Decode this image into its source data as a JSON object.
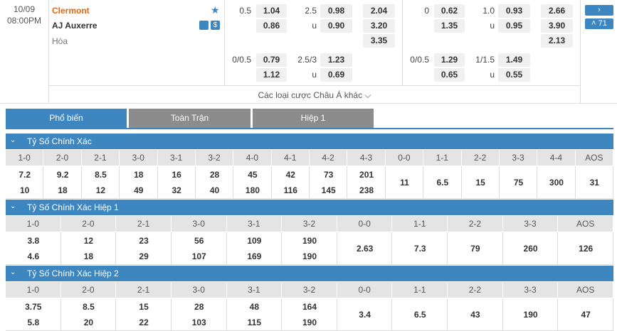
{
  "match": {
    "date": "10/09",
    "time": "08:00PM",
    "home": "Clermont",
    "away": "AJ Auxerre",
    "draw": "Hòa",
    "more": "Các loại cược Châu Á khác",
    "badge": "71"
  },
  "odds": [
    {
      "rows": [
        {
          "a": {
            "label": "0.5",
            "value": "1.04"
          },
          "b": {
            "label": "2.5",
            "value": "0.98"
          },
          "c": "2.04"
        },
        {
          "a": {
            "value": "0.86"
          },
          "b": {
            "label": "u",
            "value": "0.90"
          },
          "c": "3.20"
        },
        {
          "c": "3.35"
        },
        {
          "a": {
            "label": "0/0.5",
            "value": "0.79"
          },
          "b": {
            "label": "2.5/3",
            "value": "1.23"
          }
        },
        {
          "a": {
            "value": "1.12"
          },
          "b": {
            "label": "u",
            "value": "0.69"
          }
        }
      ]
    },
    {
      "rows": [
        {
          "a": {
            "label": "0",
            "value": "0.62"
          },
          "b": {
            "label": "1.0",
            "value": "0.93"
          },
          "c": "2.66"
        },
        {
          "a": {
            "value": "1.35"
          },
          "b": {
            "label": "u",
            "value": "0.95"
          },
          "c": "3.90"
        },
        {
          "c": "2.13"
        },
        {
          "a": {
            "label": "0/0.5",
            "value": "1.29"
          },
          "b": {
            "label": "1/1.5",
            "value": "1.49"
          }
        },
        {
          "a": {
            "value": "0.65"
          },
          "b": {
            "label": "u",
            "value": "0.55"
          }
        }
      ]
    }
  ],
  "tabs": [
    "Phổ biến",
    "Toàn Trận",
    "Hiệp 1"
  ],
  "sections": [
    {
      "title": "Tỷ Số Chính Xác",
      "cells": [
        {
          "label": "1-0",
          "values": [
            "7.2",
            "10"
          ]
        },
        {
          "label": "2-0",
          "values": [
            "9.2",
            "18"
          ]
        },
        {
          "label": "2-1",
          "values": [
            "8.5",
            "12"
          ]
        },
        {
          "label": "3-0",
          "values": [
            "18",
            "49"
          ]
        },
        {
          "label": "3-1",
          "values": [
            "16",
            "32"
          ]
        },
        {
          "label": "3-2",
          "values": [
            "28",
            "40"
          ]
        },
        {
          "label": "4-0",
          "values": [
            "45",
            "180"
          ]
        },
        {
          "label": "4-1",
          "values": [
            "42",
            "116"
          ]
        },
        {
          "label": "4-2",
          "values": [
            "73",
            "145"
          ]
        },
        {
          "label": "4-3",
          "values": [
            "201",
            "238"
          ]
        },
        {
          "label": "0-0",
          "values": [
            "11"
          ]
        },
        {
          "label": "1-1",
          "values": [
            "6.5"
          ]
        },
        {
          "label": "2-2",
          "values": [
            "15"
          ]
        },
        {
          "label": "3-3",
          "values": [
            "75"
          ]
        },
        {
          "label": "4-4",
          "values": [
            "300"
          ]
        },
        {
          "label": "AOS",
          "values": [
            "31"
          ]
        }
      ]
    },
    {
      "title": "Tỷ Số Chính Xác Hiệp 1",
      "cells": [
        {
          "label": "1-0",
          "values": [
            "3.8",
            "4.6"
          ]
        },
        {
          "label": "2-0",
          "values": [
            "12",
            "18"
          ]
        },
        {
          "label": "2-1",
          "values": [
            "23",
            "29"
          ]
        },
        {
          "label": "3-0",
          "values": [
            "56",
            "107"
          ]
        },
        {
          "label": "3-1",
          "values": [
            "109",
            "169"
          ]
        },
        {
          "label": "3-2",
          "values": [
            "190",
            "190"
          ]
        },
        {
          "label": "0-0",
          "values": [
            "2.63"
          ]
        },
        {
          "label": "1-1",
          "values": [
            "7.3"
          ]
        },
        {
          "label": "2-2",
          "values": [
            "79"
          ]
        },
        {
          "label": "3-3",
          "values": [
            "260"
          ]
        },
        {
          "label": "AOS",
          "values": [
            "126"
          ]
        }
      ]
    },
    {
      "title": "Tỷ Số Chính Xác Hiệp 2",
      "cells": [
        {
          "label": "1-0",
          "values": [
            "3.75",
            "5.8"
          ]
        },
        {
          "label": "2-0",
          "values": [
            "8.5",
            "20"
          ]
        },
        {
          "label": "2-1",
          "values": [
            "15",
            "22"
          ]
        },
        {
          "label": "3-0",
          "values": [
            "28",
            "103"
          ]
        },
        {
          "label": "3-1",
          "values": [
            "48",
            "115"
          ]
        },
        {
          "label": "3-2",
          "values": [
            "164",
            "190"
          ]
        },
        {
          "label": "0-0",
          "values": [
            "3.4"
          ]
        },
        {
          "label": "1-1",
          "values": [
            "6.5"
          ]
        },
        {
          "label": "2-2",
          "values": [
            "43"
          ]
        },
        {
          "label": "3-3",
          "values": [
            "190"
          ]
        },
        {
          "label": "AOS",
          "values": [
            "47"
          ]
        }
      ]
    }
  ]
}
